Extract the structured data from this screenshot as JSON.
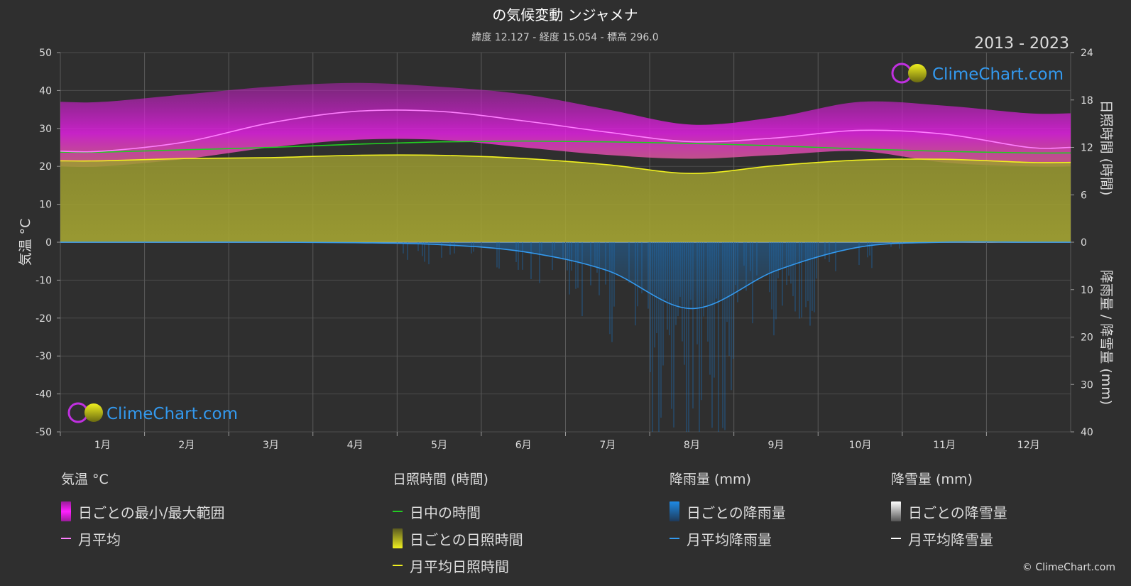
{
  "title": "の気候変動 ンジャメナ",
  "subtitle": "緯度 12.127 - 経度 15.054 - 標高 296.0",
  "year_range": "2013 - 2023",
  "brand": "ClimeChart.com",
  "copyright": "© ClimeChart.com",
  "colors": {
    "background": "#2f2f2f",
    "temp_range": "#e020e0",
    "temp_avg": "#ff80ff",
    "daylight": "#22cc22",
    "sunshine_fill": "#a8a832",
    "sunshine_avg": "#f0f020",
    "rain_fill": "#1e6eb4",
    "rain_avg": "#3399ee",
    "snow": "#ffffff"
  },
  "chart_data": {
    "type": "line",
    "categories": [
      "1月",
      "2月",
      "3月",
      "4月",
      "5月",
      "6月",
      "7月",
      "8月",
      "9月",
      "10月",
      "11月",
      "12月"
    ],
    "y_left": {
      "label": "気温 °C",
      "ticks": [
        50,
        40,
        30,
        20,
        10,
        0,
        -10,
        -20,
        -30,
        -40,
        -50
      ],
      "range": [
        -50,
        50
      ]
    },
    "y_right_top": {
      "label": "日照時間 (時間)",
      "ticks": [
        24,
        18,
        12,
        6,
        0
      ],
      "range": [
        0,
        24
      ]
    },
    "y_right_bottom": {
      "label": "降雨量 / 降雪量 (mm)",
      "ticks": [
        0,
        10,
        20,
        30,
        40
      ],
      "range": [
        0,
        40
      ]
    },
    "grid": true,
    "series": [
      {
        "name": "日ごとの最小/最大範囲",
        "kind": "band",
        "min": [
          20,
          22,
          25,
          27,
          27,
          25,
          23,
          22,
          23,
          24,
          21,
          20
        ],
        "max": [
          37,
          39,
          41,
          42,
          41,
          39,
          35,
          31,
          33,
          37,
          36,
          34
        ]
      },
      {
        "name": "月平均",
        "kind": "temperature_avg",
        "values": [
          24.0,
          26.5,
          31.5,
          34.5,
          34.5,
          32.0,
          29.0,
          26.5,
          27.5,
          29.5,
          28.5,
          25.0
        ]
      },
      {
        "name": "日中の時間",
        "kind": "daylight_hours",
        "values": [
          11.4,
          11.7,
          12.0,
          12.4,
          12.7,
          12.8,
          12.7,
          12.5,
          12.2,
          11.8,
          11.5,
          11.3
        ]
      },
      {
        "name": "月平均日照時間",
        "kind": "sunshine_hours",
        "values": [
          10.3,
          10.6,
          10.7,
          11.0,
          11.0,
          10.6,
          9.8,
          8.7,
          9.7,
          10.4,
          10.5,
          10.1
        ]
      },
      {
        "name": "月平均降雨量",
        "kind": "rain_mm",
        "values": [
          0.0,
          0.0,
          0.0,
          0.1,
          0.5,
          2.0,
          6.0,
          14.0,
          6.0,
          1.0,
          0.0,
          0.0
        ]
      },
      {
        "name": "月平均降雪量",
        "kind": "snow_mm",
        "values": [
          0,
          0,
          0,
          0,
          0,
          0,
          0,
          0,
          0,
          0,
          0,
          0
        ]
      }
    ]
  },
  "legend": {
    "temp": {
      "heading": "気温 °C",
      "range_label": "日ごとの最小/最大範囲",
      "avg_label": "月平均"
    },
    "sun": {
      "heading": "日照時間 (時間)",
      "daylight_label": "日中の時間",
      "daily_label": "日ごとの日照時間",
      "avg_label": "月平均日照時間"
    },
    "rain": {
      "heading": "降雨量 (mm)",
      "daily_label": "日ごとの降雨量",
      "avg_label": "月平均降雨量"
    },
    "snow": {
      "heading": "降雪量 (mm)",
      "daily_label": "日ごとの降雪量",
      "avg_label": "月平均降雪量"
    }
  }
}
